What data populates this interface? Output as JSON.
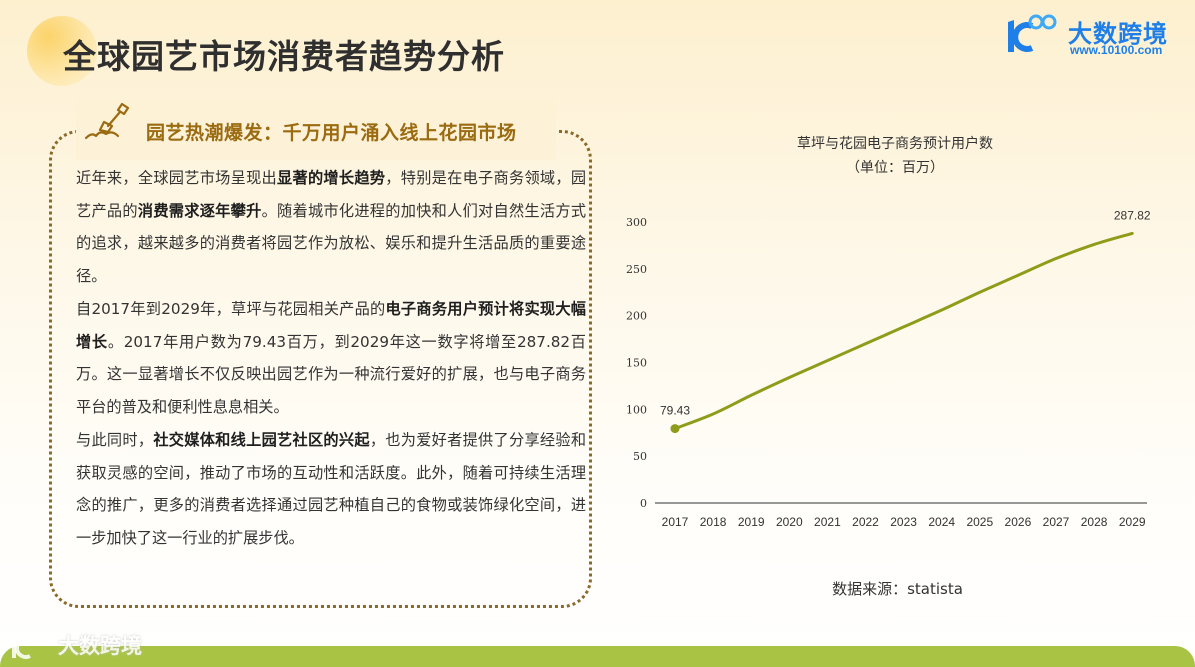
{
  "header": {
    "title": "全球园艺市场消费者趋势分析",
    "logo": {
      "brand": "大数跨境",
      "url": "www.10100.com",
      "mark": "10100",
      "color": "#1f7fe8"
    }
  },
  "text_box": {
    "icon": "shovel-icon",
    "title": "园艺热潮爆发：千万用户涌入线上花园市场",
    "paragraphs": [
      {
        "parts": [
          {
            "text": "近年来，全球园艺市场呈现出",
            "bold": false
          },
          {
            "text": "显著的增长趋势",
            "bold": true
          },
          {
            "text": "，特别是在电子商务领域，园艺产品的",
            "bold": false
          },
          {
            "text": "消费需求逐年攀升",
            "bold": true
          },
          {
            "text": "。随着城市化进程的加快和人们对自然生活方式的追求，越来越多的消费者将园艺作为放松、娱乐和提升生活品质的重要途径。",
            "bold": false
          }
        ]
      },
      {
        "parts": [
          {
            "text": "自2017年到2029年，草坪与花园相关产品的",
            "bold": false
          },
          {
            "text": "电子商务用户预计将实现大幅增长",
            "bold": true
          },
          {
            "text": "。2017年用户数为79.43百万，到2029年这一数字将增至287.82百万。这一显著增长不仅反映出园艺作为一种流行爱好的扩展，也与电子商务平台的普及和便利性息息相关。",
            "bold": false
          }
        ]
      },
      {
        "parts": [
          {
            "text": "与此同时，",
            "bold": false
          },
          {
            "text": "社交媒体和线上园艺社区的兴起",
            "bold": true
          },
          {
            "text": "，也为爱好者提供了分享经验和获取灵感的空间，推动了市场的互动性和活跃度。此外，随着可持续生活理念的推广，更多的消费者选择通过园艺种植自己的食物或装饰绿化空间，进一步加快了这一行业的扩展步伐。",
            "bold": false
          }
        ]
      }
    ]
  },
  "chart": {
    "title_line1": "草坪与花园电子商务预计用户数",
    "title_line2": "（单位：百万）",
    "source": "数据来源：statista"
  },
  "chart_data": {
    "type": "line",
    "title": "草坪与花园电子商务预计用户数",
    "subtitle": "（单位：百万）",
    "xlabel": "",
    "ylabel": "",
    "categories": [
      "2017",
      "2018",
      "2019",
      "2020",
      "2021",
      "2022",
      "2023",
      "2024",
      "2025",
      "2026",
      "2027",
      "2028",
      "2029"
    ],
    "series": [
      {
        "name": "草坪与花园电子商务预计用户数",
        "color": "#8f9c1a",
        "values": [
          79.43,
          95,
          115,
          134,
          152,
          170,
          188,
          206,
          225,
          243,
          261,
          276,
          287.82
        ]
      }
    ],
    "data_labels": [
      {
        "x": "2017",
        "text": "79.43"
      },
      {
        "x": "2029",
        "text": "287.82"
      }
    ],
    "yticks": [
      0,
      50,
      100,
      150,
      200,
      250,
      300
    ],
    "ylim": [
      0,
      300
    ],
    "grid": false,
    "legend": "none",
    "source": "数据来源：statista"
  },
  "footer": {
    "watermark": "大数跨境",
    "bar_color": "#a9c445"
  }
}
